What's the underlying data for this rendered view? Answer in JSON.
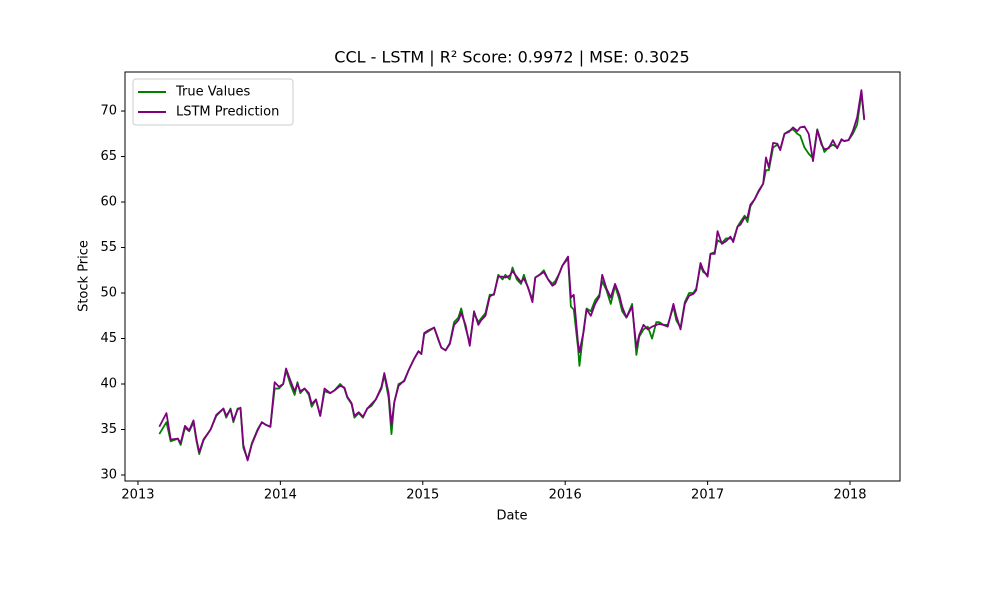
{
  "chart_data": {
    "type": "line",
    "title": "CCL - LSTM | R² Score: 0.9972 | MSE: 0.3025",
    "xlabel": "Date",
    "ylabel": "Stock Price",
    "legend": "upper left",
    "grid": false,
    "xlim": [
      2012.909,
      2018.351
    ],
    "xticks": [
      2013,
      2014,
      2015,
      2016,
      2017,
      2018
    ],
    "ylim": [
      29.34,
      74.29
    ],
    "yticks": [
      30,
      35,
      40,
      45,
      50,
      55,
      60,
      65,
      70
    ],
    "x": [
      2013.15,
      2013.2,
      2013.23,
      2013.28,
      2013.3,
      2013.33,
      2013.36,
      2013.39,
      2013.41,
      2013.43,
      2013.46,
      2013.51,
      2013.55,
      2013.6,
      2013.62,
      2013.65,
      2013.67,
      2013.7,
      2013.72,
      2013.74,
      2013.77,
      2013.8,
      2013.84,
      2013.87,
      2013.9,
      2013.93,
      2013.96,
      2013.99,
      2014.02,
      2014.04,
      2014.07,
      2014.1,
      2014.12,
      2014.14,
      2014.17,
      2014.2,
      2014.22,
      2014.25,
      2014.28,
      2014.31,
      2014.35,
      2014.38,
      2014.42,
      2014.45,
      2014.47,
      2014.5,
      2014.52,
      2014.55,
      2014.58,
      2014.61,
      2014.64,
      2014.67,
      2014.71,
      2014.73,
      2014.76,
      2014.78,
      2014.8,
      2014.83,
      2014.87,
      2014.9,
      2014.94,
      2014.97,
      2014.99,
      2015.01,
      2015.04,
      2015.08,
      2015.11,
      2015.13,
      2015.16,
      2015.19,
      2015.22,
      2015.25,
      2015.27,
      2015.3,
      2015.33,
      2015.36,
      2015.39,
      2015.41,
      2015.44,
      2015.47,
      2015.5,
      2015.53,
      2015.56,
      2015.58,
      2015.61,
      2015.63,
      2015.66,
      2015.69,
      2015.71,
      2015.74,
      2015.77,
      2015.79,
      2015.82,
      2015.85,
      2015.88,
      2015.91,
      2015.93,
      2015.96,
      2015.98,
      2016.02,
      2016.04,
      2016.06,
      2016.09,
      2016.1,
      2016.13,
      2016.15,
      2016.18,
      2016.21,
      2016.24,
      2016.26,
      2016.29,
      2016.32,
      2016.35,
      2016.38,
      2016.4,
      2016.43,
      2016.47,
      2016.5,
      2016.52,
      2016.55,
      2016.58,
      2016.61,
      2016.64,
      2016.66,
      2016.69,
      2016.72,
      2016.76,
      2016.78,
      2016.81,
      2016.84,
      2016.87,
      2016.9,
      2016.92,
      2016.95,
      2016.97,
      2017.0,
      2017.02,
      2017.05,
      2017.07,
      2017.1,
      2017.13,
      2017.16,
      2017.18,
      2017.21,
      2017.23,
      2017.26,
      2017.28,
      2017.3,
      2017.33,
      2017.36,
      2017.39,
      2017.41,
      2017.43,
      2017.46,
      2017.49,
      2017.51,
      2017.54,
      2017.57,
      2017.6,
      2017.63,
      2017.65,
      2017.68,
      2017.71,
      2017.74,
      2017.77,
      2017.8,
      2017.82,
      2017.85,
      2017.88,
      2017.91,
      2017.94,
      2017.96,
      2017.99,
      2018.02,
      2018.05,
      2018.08,
      2018.1
    ],
    "series": [
      {
        "name": "True Values",
        "color": "#008000",
        "values": [
          34.5,
          35.8,
          33.7,
          34.0,
          33.3,
          35.2,
          34.8,
          35.8,
          33.8,
          32.3,
          33.8,
          35.0,
          36.5,
          37.3,
          36.3,
          37.3,
          35.8,
          37.3,
          37.3,
          33.0,
          31.7,
          33.5,
          35.0,
          35.8,
          35.5,
          35.3,
          39.5,
          39.5,
          40.0,
          41.5,
          40.0,
          38.8,
          40.2,
          39.0,
          39.5,
          38.8,
          37.5,
          38.3,
          36.5,
          39.2,
          39.0,
          39.3,
          40.0,
          39.5,
          38.5,
          37.8,
          36.3,
          36.8,
          36.3,
          37.3,
          37.6,
          38.3,
          39.5,
          41.0,
          38.5,
          34.5,
          38.0,
          40.0,
          40.3,
          41.5,
          42.8,
          43.6,
          43.3,
          45.5,
          45.8,
          46.2,
          44.8,
          44.0,
          43.7,
          44.5,
          46.8,
          47.3,
          48.3,
          46.2,
          44.5,
          47.8,
          46.8,
          47.2,
          47.8,
          49.8,
          49.8,
          52.0,
          51.5,
          52.0,
          51.5,
          52.8,
          51.5,
          51.0,
          52.0,
          50.5,
          49.3,
          51.7,
          52.0,
          52.5,
          51.5,
          51.0,
          51.3,
          52.2,
          53.0,
          53.8,
          48.5,
          48.2,
          44.0,
          42.0,
          46.0,
          48.3,
          48.0,
          49.2,
          49.8,
          51.3,
          50.3,
          48.8,
          50.8,
          49.3,
          48.0,
          47.3,
          48.8,
          43.2,
          45.2,
          46.0,
          46.3,
          45.0,
          46.8,
          46.8,
          46.5,
          46.5,
          48.5,
          47.0,
          46.2,
          49.0,
          50.0,
          50.0,
          50.5,
          53.0,
          52.3,
          52.0,
          54.3,
          54.5,
          55.8,
          55.5,
          56.0,
          56.0,
          55.8,
          57.3,
          57.8,
          58.5,
          57.8,
          59.5,
          60.3,
          61.3,
          62.0,
          63.5,
          63.5,
          66.0,
          66.3,
          65.8,
          67.5,
          67.8,
          68.0,
          67.5,
          67.3,
          66.0,
          65.3,
          64.8,
          68.0,
          66.5,
          65.5,
          66.0,
          66.3,
          66.0,
          66.8,
          66.7,
          66.8,
          67.5,
          68.5,
          72.0,
          69.0
        ]
      },
      {
        "name": "LSTM Prediction",
        "color": "#800080",
        "values": [
          35.3,
          36.8,
          33.9,
          34.0,
          33.5,
          35.4,
          34.9,
          36.0,
          34.0,
          32.5,
          33.9,
          35.0,
          36.6,
          37.3,
          36.5,
          37.2,
          36.0,
          37.2,
          37.4,
          33.3,
          31.6,
          33.4,
          34.9,
          35.8,
          35.5,
          35.3,
          40.2,
          39.7,
          40.0,
          41.7,
          40.4,
          39.2,
          40.0,
          39.2,
          39.5,
          39.0,
          37.8,
          38.3,
          36.5,
          39.5,
          39.0,
          39.3,
          39.8,
          39.6,
          38.6,
          37.9,
          36.5,
          36.9,
          36.4,
          37.3,
          37.8,
          38.3,
          39.7,
          41.2,
          39.0,
          35.5,
          38.0,
          39.8,
          40.4,
          41.5,
          42.8,
          43.6,
          43.3,
          45.6,
          45.9,
          46.2,
          44.9,
          44.0,
          43.7,
          44.4,
          46.5,
          47.0,
          47.8,
          46.5,
          44.2,
          48.0,
          46.5,
          47.0,
          47.5,
          49.6,
          49.9,
          51.8,
          51.8,
          51.7,
          51.9,
          52.4,
          51.8,
          51.2,
          51.6,
          50.6,
          49.0,
          51.7,
          52.0,
          52.3,
          51.5,
          50.8,
          51.0,
          52.2,
          53.0,
          54.0,
          49.5,
          49.8,
          44.5,
          43.5,
          45.8,
          48.2,
          47.5,
          48.8,
          49.6,
          52.0,
          50.5,
          49.5,
          51.0,
          49.8,
          48.5,
          47.3,
          48.5,
          44.0,
          45.4,
          46.5,
          46.0,
          46.3,
          46.5,
          46.6,
          46.5,
          46.3,
          48.8,
          47.5,
          46.0,
          48.8,
          49.7,
          49.9,
          50.3,
          53.3,
          52.5,
          51.8,
          54.3,
          54.3,
          56.8,
          55.4,
          55.7,
          56.2,
          55.6,
          57.3,
          57.5,
          58.3,
          58.3,
          59.7,
          60.3,
          61.2,
          62.0,
          64.9,
          63.8,
          66.5,
          66.4,
          65.7,
          67.5,
          67.7,
          68.2,
          67.8,
          68.2,
          68.3,
          67.5,
          64.5,
          67.9,
          66.3,
          65.8,
          65.9,
          66.8,
          65.9,
          66.9,
          66.7,
          66.8,
          67.8,
          69.3,
          72.3,
          69.1
        ]
      }
    ]
  }
}
